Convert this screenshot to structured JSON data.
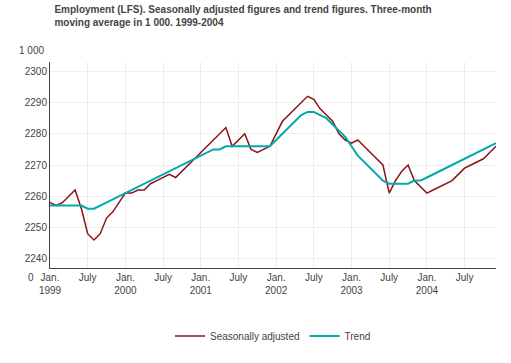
{
  "chart_data": {
    "type": "line",
    "title": "Employment (LFS). Seasonally adjusted figures and trend figures. Three-month",
    "subtitle": "moving average in 1 000. 1999-2004",
    "ylabel": "1 000",
    "annotations": [
      {
        "text": "0"
      }
    ],
    "categories": [
      "Jan.\n1999",
      null,
      null,
      null,
      null,
      null,
      "July",
      null,
      null,
      null,
      null,
      null,
      "Jan.\n2000",
      null,
      null,
      null,
      null,
      null,
      "July",
      null,
      null,
      null,
      null,
      null,
      "Jan.\n2001",
      null,
      null,
      null,
      null,
      null,
      "July",
      null,
      null,
      null,
      null,
      null,
      "Jan.\n2002",
      null,
      null,
      null,
      null,
      null,
      "July",
      null,
      null,
      null,
      null,
      null,
      "Jan.\n2003",
      null,
      null,
      null,
      null,
      null,
      "July",
      null,
      null,
      null,
      null,
      null,
      "Jan.\n2004",
      null,
      null,
      null,
      null,
      null,
      "July",
      null,
      null,
      null,
      null,
      null
    ],
    "series": [
      {
        "name": "Seasonally adjusted",
        "color": "#8b1414",
        "values": [
          2258,
          2257,
          2258,
          2260,
          2262,
          2256,
          2248,
          2246,
          2248,
          2253,
          2255,
          2258,
          2261,
          2261,
          2262,
          2262,
          2264,
          2265,
          2266,
          2267,
          2266,
          2268,
          2270,
          2272,
          2274,
          2276,
          2278,
          2280,
          2282,
          2276,
          2278,
          2280,
          2275,
          2274,
          2275,
          2276,
          2280,
          2284,
          2286,
          2288,
          2290,
          2292,
          2291,
          2288,
          2286,
          2284,
          2280,
          2278,
          2277,
          2278,
          2276,
          2274,
          2272,
          2270,
          2261,
          2265,
          2268,
          2270,
          2265,
          2263,
          2261,
          2262,
          2263,
          2264,
          2265,
          2267,
          2269,
          2270,
          2271,
          2272,
          2274,
          2276
        ]
      },
      {
        "name": "Trend",
        "color": "#00aaaa",
        "values": [
          2257,
          2257,
          2257,
          2257,
          2257,
          2257,
          2256,
          2256,
          2257,
          2258,
          2259,
          2260,
          2261,
          2262,
          2263,
          2264,
          2265,
          2266,
          2267,
          2268,
          2269,
          2270,
          2271,
          2272,
          2273,
          2274,
          2275,
          2275,
          2276,
          2276,
          2276,
          2276,
          2276,
          2276,
          2276,
          2276,
          2278,
          2280,
          2282,
          2284,
          2286,
          2287,
          2287,
          2286,
          2285,
          2283,
          2281,
          2279,
          2276,
          2273,
          2271,
          2269,
          2267,
          2265,
          2264,
          2264,
          2264,
          2264,
          2265,
          2265,
          2266,
          2267,
          2268,
          2269,
          2270,
          2271,
          2272,
          2273,
          2274,
          2275,
          2276,
          2277
        ]
      }
    ],
    "ylim": [
      2237,
      2303
    ],
    "yticks": [
      2240,
      2250,
      2260,
      2270,
      2280,
      2290,
      2300
    ],
    "grid": true,
    "legend": "bottom"
  }
}
